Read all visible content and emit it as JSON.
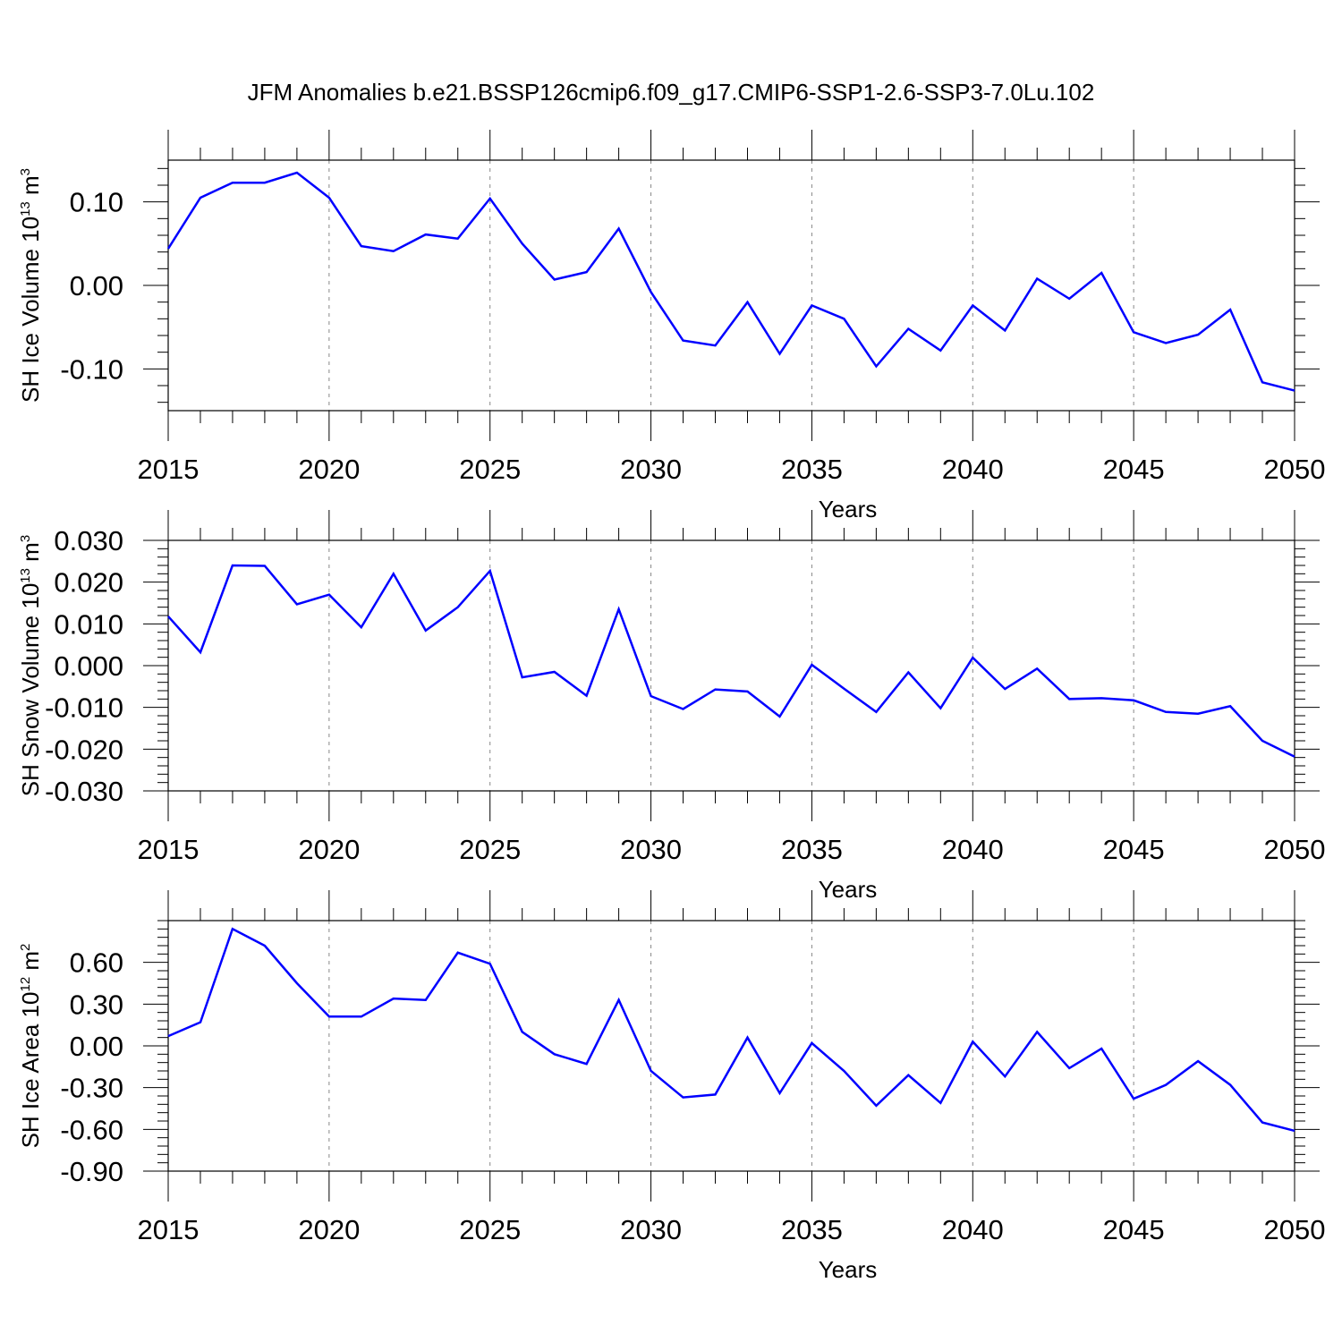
{
  "title": "JFM Anomalies b.e21.BSSP126cmip6.f09_g17.CMIP6-SSP1-2.6-SSP3-7.0Lu.102",
  "colors": {
    "series": "#0000ff",
    "axis": "#000000",
    "grid": "#888888"
  },
  "chart_data": [
    {
      "type": "line",
      "ylabel": "SH Ice Volume",
      "ylabel_unit_base": "10",
      "ylabel_unit_exp": "13",
      "ylabel_unit": "m",
      "ylabel_unit_pow": "3",
      "xlabel": "Years",
      "xlim": [
        2015,
        2050
      ],
      "ylim": [
        -0.15,
        0.15
      ],
      "xticks": [
        "2015",
        "2020",
        "2025",
        "2030",
        "2035",
        "2040",
        "2045",
        "2050"
      ],
      "yticks": [
        "0.10",
        "0.00",
        "-0.10"
      ],
      "ytick_values": [
        0.1,
        0.0,
        -0.1
      ],
      "x": [
        2015,
        2016,
        2017,
        2018,
        2019,
        2020,
        2021,
        2022,
        2023,
        2024,
        2025,
        2026,
        2027,
        2028,
        2029,
        2030,
        2031,
        2032,
        2033,
        2034,
        2035,
        2036,
        2037,
        2038,
        2039,
        2040,
        2041,
        2042,
        2043,
        2044,
        2045,
        2046,
        2047,
        2048,
        2049,
        2050
      ],
      "values": [
        0.044,
        0.105,
        0.123,
        0.123,
        0.135,
        0.105,
        0.047,
        0.041,
        0.061,
        0.056,
        0.104,
        0.05,
        0.007,
        0.016,
        0.068,
        -0.008,
        -0.066,
        -0.072,
        -0.02,
        -0.082,
        -0.024,
        -0.04,
        -0.097,
        -0.052,
        -0.078,
        -0.024,
        -0.054,
        0.008,
        -0.016,
        0.015,
        -0.056,
        -0.069,
        -0.059,
        -0.029,
        -0.116,
        -0.126
      ]
    },
    {
      "type": "line",
      "ylabel": "SH Snow Volume",
      "ylabel_unit_base": "10",
      "ylabel_unit_exp": "13",
      "ylabel_unit": "m",
      "ylabel_unit_pow": "3",
      "xlabel": "Years",
      "xlim": [
        2015,
        2050
      ],
      "ylim": [
        -0.03,
        0.03
      ],
      "xticks": [
        "2015",
        "2020",
        "2025",
        "2030",
        "2035",
        "2040",
        "2045",
        "2050"
      ],
      "yticks": [
        "0.030",
        "0.020",
        "0.010",
        "0.000",
        "-0.010",
        "-0.020",
        "-0.030"
      ],
      "ytick_values": [
        0.03,
        0.02,
        0.01,
        0.0,
        -0.01,
        -0.02,
        -0.03
      ],
      "x": [
        2015,
        2016,
        2017,
        2018,
        2019,
        2020,
        2021,
        2022,
        2023,
        2024,
        2025,
        2026,
        2027,
        2028,
        2029,
        2030,
        2031,
        2032,
        2033,
        2034,
        2035,
        2036,
        2037,
        2038,
        2039,
        2040,
        2041,
        2042,
        2043,
        2044,
        2045,
        2046,
        2047,
        2048,
        2049,
        2050
      ],
      "values": [
        0.0118,
        0.0032,
        0.024,
        0.0239,
        0.0147,
        0.017,
        0.0092,
        0.022,
        0.0084,
        0.014,
        0.0227,
        -0.0028,
        -0.0015,
        -0.0072,
        0.0135,
        -0.0073,
        -0.0104,
        -0.0057,
        -0.0062,
        -0.0122,
        0.0002,
        -0.0055,
        -0.0111,
        -0.0016,
        -0.0102,
        0.0019,
        -0.0056,
        -0.0007,
        -0.008,
        -0.0078,
        -0.0083,
        -0.0111,
        -0.0115,
        -0.0097,
        -0.018,
        -0.0218
      ]
    },
    {
      "type": "line",
      "ylabel": "SH Ice Area",
      "ylabel_unit_base": "10",
      "ylabel_unit_exp": "12",
      "ylabel_unit": "m",
      "ylabel_unit_pow": "2",
      "xlabel": "Years",
      "xlim": [
        2015,
        2050
      ],
      "ylim": [
        -0.9,
        0.9
      ],
      "xticks": [
        "2015",
        "2020",
        "2025",
        "2030",
        "2035",
        "2040",
        "2045",
        "2050"
      ],
      "yticks": [
        "0.60",
        "0.30",
        "0.00",
        "-0.30",
        "-0.60",
        "-0.90"
      ],
      "ytick_values": [
        0.6,
        0.3,
        0.0,
        -0.3,
        -0.6,
        -0.9
      ],
      "x": [
        2015,
        2016,
        2017,
        2018,
        2019,
        2020,
        2021,
        2022,
        2023,
        2024,
        2025,
        2026,
        2027,
        2028,
        2029,
        2030,
        2031,
        2032,
        2033,
        2034,
        2035,
        2036,
        2037,
        2038,
        2039,
        2040,
        2041,
        2042,
        2043,
        2044,
        2045,
        2046,
        2047,
        2048,
        2049,
        2050
      ],
      "values": [
        0.07,
        0.17,
        0.84,
        0.72,
        0.45,
        0.21,
        0.21,
        0.34,
        0.33,
        0.67,
        0.59,
        0.1,
        -0.06,
        -0.13,
        0.33,
        -0.18,
        -0.37,
        -0.35,
        0.06,
        -0.34,
        0.02,
        -0.18,
        -0.43,
        -0.21,
        -0.41,
        0.03,
        -0.22,
        0.1,
        -0.16,
        -0.02,
        -0.38,
        -0.28,
        -0.11,
        -0.28,
        -0.55,
        -0.61
      ]
    }
  ]
}
